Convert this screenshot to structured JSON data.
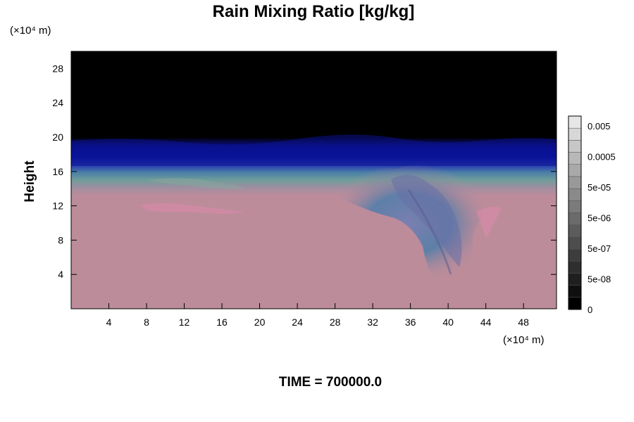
{
  "chart_data": {
    "type": "heatmap",
    "title": "Rain Mixing Ratio [kg/kg]",
    "ylabel": "Height",
    "x_unit": "(×10⁴ m)",
    "y_unit": "(×10⁴ m)",
    "xlim": [
      0,
      51.5
    ],
    "ylim": [
      0,
      30
    ],
    "x_ticks": [
      4,
      8,
      12,
      16,
      20,
      24,
      28,
      32,
      36,
      40,
      44,
      48
    ],
    "y_ticks": [
      4,
      8,
      12,
      16,
      20,
      24,
      28
    ],
    "colorbar": {
      "min": 0,
      "max": 0.01,
      "labels": [
        "0.005",
        "0.0005",
        "5e-05",
        "5e-06",
        "5e-07",
        "5e-08",
        "0"
      ]
    },
    "grid": false,
    "legend": "colorbar-right"
  },
  "footer": {
    "time_label": "TIME = 700000.0"
  }
}
